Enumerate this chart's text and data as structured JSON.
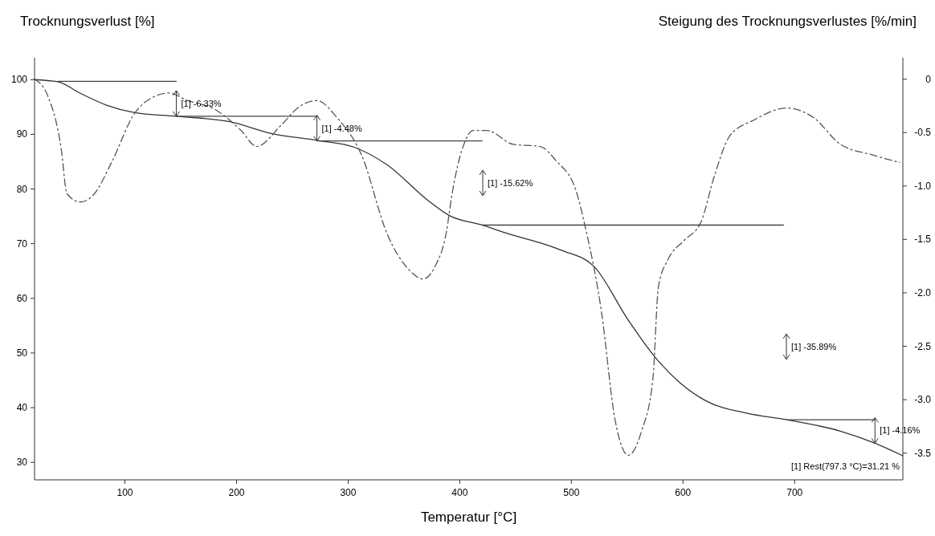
{
  "chart_data": {
    "type": "line",
    "xlabel": "Temperatur [°C]",
    "ylabel": "Trocknungsverlust [%]",
    "y2label": "Steigung des Trocknungsverlustes [%/min]",
    "xlim": [
      19,
      797
    ],
    "xticks": [
      100,
      200,
      300,
      400,
      500,
      600,
      700
    ],
    "ylim": [
      26.8,
      104
    ],
    "yticks": [
      30,
      40,
      50,
      60,
      70,
      80,
      90,
      100
    ],
    "y2lim": [
      -3.75,
      0.2
    ],
    "y2ticks": [
      0,
      -0.5,
      {
        "value": -1,
        "label": "-1.0"
      },
      -1.5,
      {
        "value": -2,
        "label": "-2.0"
      },
      -2.5,
      {
        "value": -3,
        "label": "-3.0"
      },
      -3.5
    ],
    "grid": false,
    "series": [
      {
        "color": "#333333",
        "line_style": "solid",
        "x": [
          19,
          40,
          60,
          84,
          108,
          146,
          194,
          232,
          272,
          306,
          335,
          371,
          391,
          420,
          439,
          491,
          520,
          551,
          578,
          597,
          621,
          657,
          693,
          741,
          772,
          797
        ],
        "values": [
          100,
          99.6,
          97.5,
          95.3,
          94,
          93.3,
          92.3,
          90.1,
          88.9,
          87.6,
          84.4,
          78,
          75.1,
          73.4,
          72.1,
          68.8,
          65.9,
          56,
          48.5,
          44.6,
          41.2,
          39,
          37.8,
          35.7,
          33.5,
          31.2
        ]
      },
      {
        "color": "#555555",
        "line_style": "dashed",
        "axis": "y2",
        "x": [
          19,
          31,
          43,
          48,
          60,
          72,
          88,
          108,
          127,
          139,
          156,
          180,
          204,
          218,
          240,
          256,
          272,
          290,
          312,
          335,
          355,
          367,
          378,
          388,
          393,
          403,
          412,
          424,
          448,
          472,
          486,
          504,
          513,
          527,
          539,
          551,
          563,
          573,
          578,
          587,
          601,
          616,
          628,
          642,
          664,
          693,
          717,
          741,
          770,
          794
        ],
        "values": [
          0,
          -0.16,
          -0.66,
          -1.07,
          -1.15,
          -1.08,
          -0.78,
          -0.33,
          -0.16,
          -0.13,
          -0.2,
          -0.28,
          -0.48,
          -0.63,
          -0.43,
          -0.26,
          -0.2,
          -0.36,
          -0.71,
          -1.45,
          -1.79,
          -1.87,
          -1.75,
          -1.43,
          -1.08,
          -0.63,
          -0.48,
          -0.48,
          -0.61,
          -0.63,
          -0.76,
          -1.04,
          -1.41,
          -2.18,
          -3.18,
          -3.52,
          -3.29,
          -2.81,
          -1.94,
          -1.68,
          -1.51,
          -1.34,
          -0.91,
          -0.53,
          -0.38,
          -0.27,
          -0.36,
          -0.61,
          -0.71,
          -0.78
        ]
      },
      {
        "color": "#444444",
        "line_style": "solid",
        "x": [
          40,
          146
        ],
        "values": [
          99.7,
          99.7
        ]
      },
      {
        "color": "#444444",
        "line_style": "solid",
        "x": [
          146,
          272
        ],
        "values": [
          93.3,
          93.3
        ]
      },
      {
        "color": "#444444",
        "line_style": "solid",
        "x": [
          272,
          420
        ],
        "values": [
          88.8,
          88.8
        ]
      },
      {
        "color": "#444444",
        "line_style": "solid",
        "x": [
          420,
          690
        ],
        "values": [
          73.4,
          73.4
        ]
      },
      {
        "color": "#444444",
        "line_style": "solid",
        "x": [
          693,
          772
        ],
        "values": [
          37.8,
          37.8
        ]
      }
    ],
    "annotations": [
      {
        "text": "[1] -6.33%",
        "x": 146,
        "y": 93.3
      },
      {
        "text": "[1] -4.48%",
        "x": 272,
        "y": 88.8
      },
      {
        "text": "[1] -4.16%",
        "x": 772,
        "y": 33.5
      },
      "[1] -15.62%",
      "[1] -35.89%",
      "[1] Rest(797.3 °C)=31.21 %"
    ]
  }
}
